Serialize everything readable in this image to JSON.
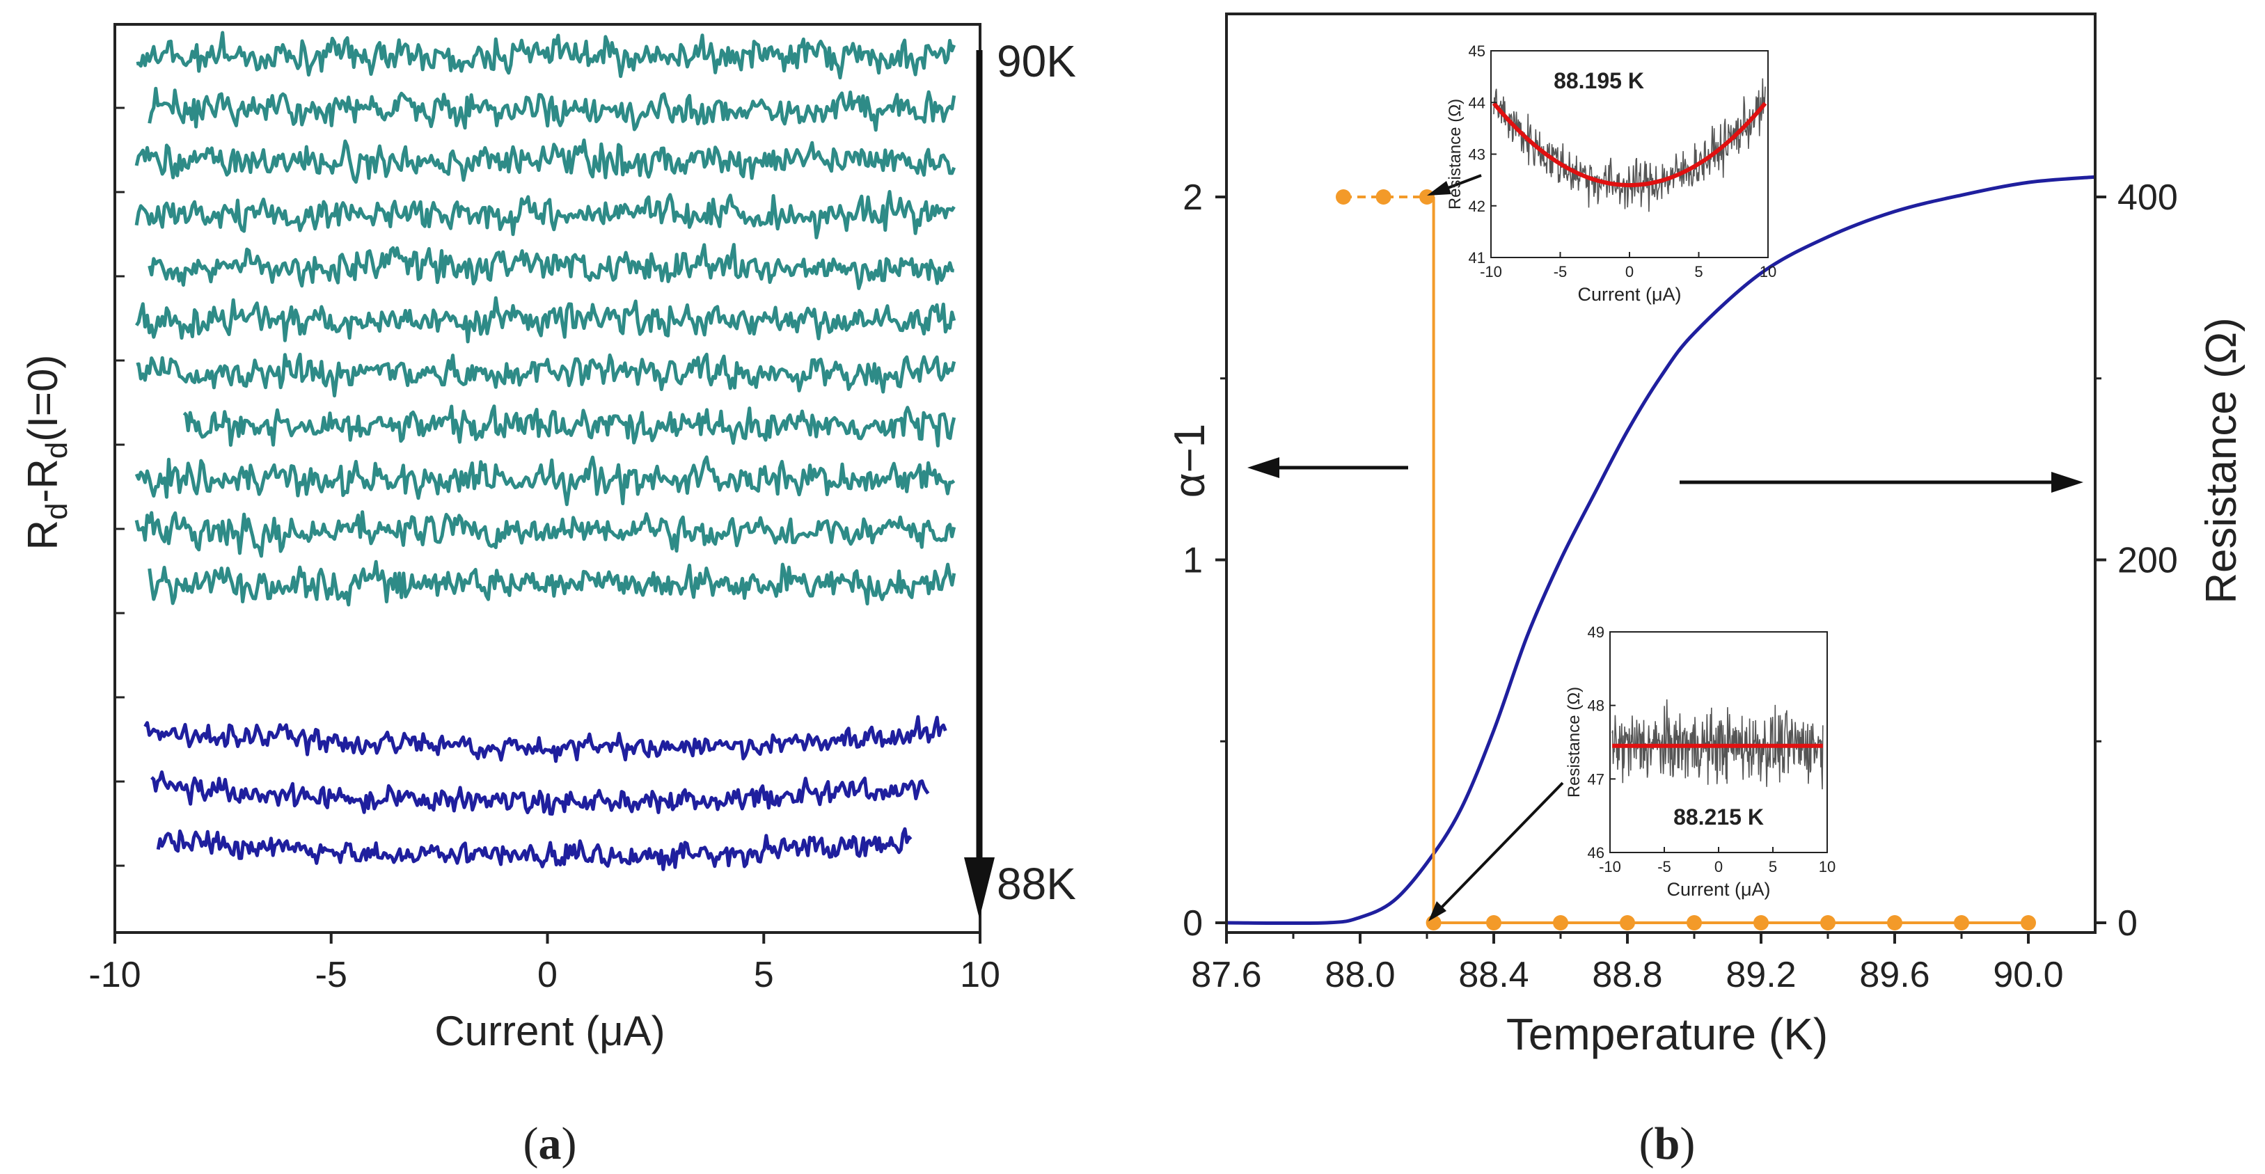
{
  "panel_a": {
    "panel_label": {
      "open": "(",
      "letter": "a",
      "close": ")"
    },
    "temp_high_label": "90K",
    "temp_low_label": "88K"
  },
  "panel_b": {
    "panel_label": {
      "open": "(",
      "letter": "b",
      "close": ")"
    }
  },
  "inset_top": {
    "title": "88.195 K"
  },
  "inset_bottom": {
    "title": "88.215 K"
  },
  "colors": {
    "teal": "#2e8b87",
    "navy": "#1f1f9e",
    "orange": "#f39a29",
    "red": "#e01010",
    "noise_gray": "#555555",
    "axis": "#222222"
  },
  "chart_data": [
    {
      "id": "a",
      "type": "line",
      "xlabel": "Current (μA)",
      "ylabel": "R_d-R_d(I=0)",
      "xlim": [
        -10,
        10
      ],
      "xticks": [
        -10,
        -5,
        0,
        5,
        10
      ],
      "temperature_range_K": [
        90,
        88
      ],
      "series": [
        {
          "color": "teal",
          "count": 11,
          "x_range": [
            -9.5,
            9.5
          ],
          "noise_amplitude": "high",
          "shape": "flat"
        },
        {
          "color": "navy",
          "count": 3,
          "x_range": [
            -9.3,
            9.3
          ],
          "noise_amplitude": "medium",
          "shape": "shallow parabolic minimum at I=0"
        }
      ]
    },
    {
      "id": "b",
      "type": "line",
      "xlabel": "Temperature (K)",
      "ylabel_left": "α−1",
      "ylabel_right": "Resistance (Ω)",
      "xlim": [
        87.6,
        90.2
      ],
      "xticks": [
        87.6,
        88.0,
        88.4,
        88.8,
        89.2,
        89.6,
        90.0
      ],
      "ylim_left": [
        0,
        2.5
      ],
      "yticks_left": [
        0,
        1,
        2
      ],
      "ylim_right": [
        0,
        500
      ],
      "yticks_right": [
        0,
        200,
        400
      ],
      "series": [
        {
          "name": "α−1",
          "axis": "left",
          "color": "orange",
          "x": [
            87.6,
            88.0,
            88.1,
            88.2,
            88.2,
            88.4,
            88.6,
            88.8,
            89.0,
            89.2,
            89.4,
            89.6,
            89.8,
            90.0
          ],
          "y": [
            2,
            2,
            2,
            2,
            0,
            0,
            0,
            0,
            0,
            0,
            0,
            0,
            0,
            0
          ]
        },
        {
          "name": "Resistance",
          "axis": "right",
          "color": "navy",
          "x": [
            87.6,
            87.9,
            88.0,
            88.1,
            88.2,
            88.3,
            88.4,
            88.5,
            88.6,
            88.7,
            88.8,
            88.9,
            89.0,
            89.2,
            89.4,
            89.6,
            89.8,
            90.0,
            90.2
          ],
          "y": [
            0,
            0,
            3,
            12,
            33,
            62,
            106,
            158,
            200,
            236,
            271,
            301,
            325,
            358,
            378,
            392,
            401,
            408,
            411
          ]
        }
      ],
      "annotations": [
        {
          "text": "← arrow pointing to left axis",
          "direction": "left"
        },
        {
          "text": "→ arrow pointing to right axis",
          "direction": "right"
        }
      ]
    },
    {
      "id": "inset_top",
      "type": "line",
      "title": "88.195 K",
      "xlabel": "Current (μA)",
      "ylabel": "Resistance (Ω)",
      "xlim": [
        -10,
        10
      ],
      "xticks": [
        -10,
        -5,
        0,
        5,
        10
      ],
      "ylim": [
        41,
        45
      ],
      "yticks": [
        41,
        42,
        43,
        44,
        45
      ],
      "series": [
        {
          "name": "data",
          "color": "noise_gray",
          "x_range": [
            -9.8,
            9.8
          ],
          "center": 42.4,
          "curvature": 0.0165,
          "noise": 0.45
        },
        {
          "name": "fit",
          "color": "red",
          "x": [
            -9.8,
            -5,
            0,
            5,
            9.8
          ],
          "y": [
            44.0,
            42.8,
            42.35,
            42.8,
            44.0
          ]
        }
      ]
    },
    {
      "id": "inset_bottom",
      "type": "line",
      "title": "88.215 K",
      "xlabel": "Current (μA)",
      "ylabel": "Resistance (Ω)",
      "xlim": [
        -10,
        10
      ],
      "xticks": [
        -10,
        -5,
        0,
        5,
        10
      ],
      "ylim": [
        46,
        49
      ],
      "yticks": [
        46,
        47,
        48,
        49
      ],
      "series": [
        {
          "name": "data",
          "color": "noise_gray",
          "x_range": [
            -9.8,
            9.6
          ],
          "center": 47.45,
          "curvature": 0,
          "noise": 0.45
        },
        {
          "name": "fit",
          "color": "red",
          "x": [
            -9.8,
            9.6
          ],
          "y": [
            47.45,
            47.45
          ]
        }
      ]
    }
  ]
}
